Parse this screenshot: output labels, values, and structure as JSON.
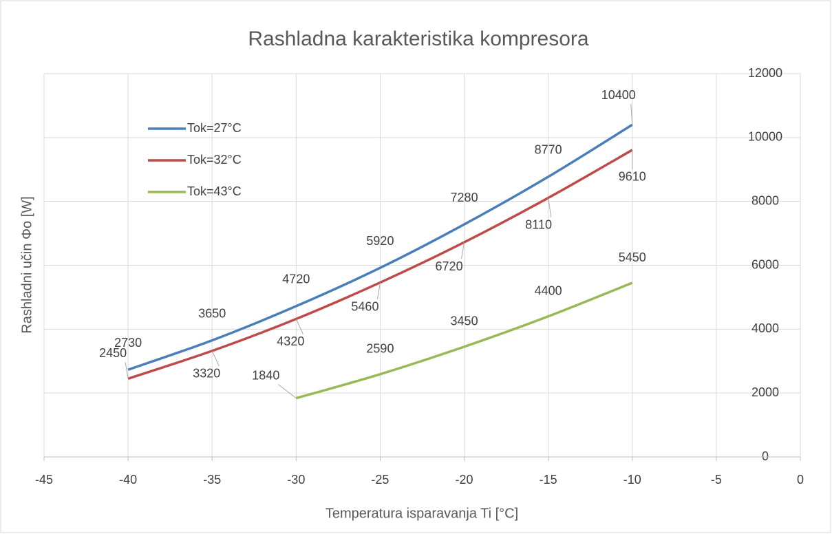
{
  "chart_data": {
    "type": "line",
    "title": "Rashladna karakteristika kompresora",
    "xlabel": "Temperatura isparavanja Ti [°C]",
    "ylabel": "Rashladni učin Φo [W]",
    "series": [
      {
        "name": "Tok=27°C",
        "color": "#4a7ebb",
        "x": [
          -40,
          -35,
          -30,
          -25,
          -20,
          -15,
          -10
        ],
        "values": [
          2730,
          3650,
          4720,
          5920,
          7280,
          8770,
          10400
        ]
      },
      {
        "name": "Tok=32°C",
        "color": "#be4b48",
        "x": [
          -40,
          -35,
          -30,
          -25,
          -20,
          -15,
          -10
        ],
        "values": [
          2450,
          3320,
          4320,
          5460,
          6720,
          8110,
          9610
        ]
      },
      {
        "name": "Tok=43°C",
        "color": "#98b954",
        "x": [
          -30,
          -25,
          -20,
          -15,
          -10
        ],
        "values": [
          1840,
          2590,
          3450,
          4400,
          5450
        ]
      }
    ],
    "xlim": [
      -45,
      0
    ],
    "xticks": [
      -45,
      -40,
      -35,
      -30,
      -25,
      -20,
      -15,
      -10,
      -5,
      0
    ],
    "ylim": [
      0,
      12000
    ],
    "yticks": [
      0,
      2000,
      4000,
      6000,
      8000,
      10000,
      12000
    ],
    "grid": true,
    "legend": "upper left"
  }
}
